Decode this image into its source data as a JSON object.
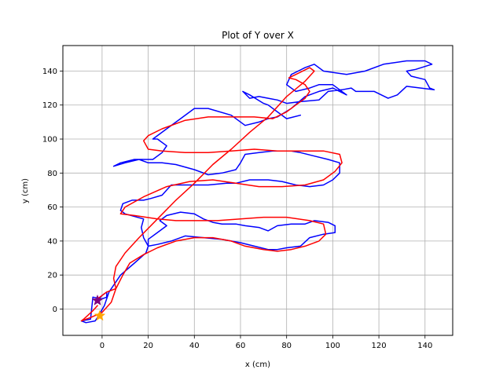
{
  "chart_data": {
    "type": "line",
    "title": "Plot of Y over X",
    "xlabel": "x (cm)",
    "ylabel": "y (cm)",
    "xlim": [
      -17,
      152
    ],
    "ylim": [
      -15.5,
      155
    ],
    "xticks": [
      0,
      20,
      40,
      60,
      80,
      100,
      120,
      140
    ],
    "yticks": [
      0,
      20,
      40,
      60,
      80,
      100,
      120,
      140
    ],
    "grid": true,
    "series": [
      {
        "color": "#0000ff",
        "points": [
          [
            -2,
            5
          ],
          [
            0,
            8
          ],
          [
            2,
            10
          ],
          [
            2,
            7
          ],
          [
            0,
            6
          ],
          [
            -4,
            7
          ],
          [
            -5,
            -6
          ],
          [
            -9,
            -7
          ],
          [
            -7,
            -8
          ],
          [
            -3,
            -7
          ],
          [
            -2,
            -5
          ],
          [
            1,
            2
          ],
          [
            3,
            10
          ],
          [
            8,
            20
          ],
          [
            14,
            27
          ],
          [
            19,
            33
          ],
          [
            20,
            37
          ],
          [
            20,
            41
          ],
          [
            24,
            45
          ],
          [
            28,
            49
          ],
          [
            25,
            52
          ],
          [
            28,
            55
          ],
          [
            34,
            57
          ],
          [
            40,
            56
          ],
          [
            44,
            53
          ],
          [
            48,
            51
          ],
          [
            52,
            50
          ],
          [
            58,
            50
          ],
          [
            62,
            49
          ],
          [
            68,
            48
          ],
          [
            72,
            46
          ],
          [
            76,
            49
          ],
          [
            82,
            50
          ],
          [
            88,
            50
          ],
          [
            92,
            52
          ],
          [
            98,
            51
          ],
          [
            101,
            49
          ],
          [
            101,
            45
          ],
          [
            96,
            44
          ],
          [
            90,
            42
          ],
          [
            86,
            37
          ],
          [
            80,
            36
          ],
          [
            76,
            35
          ],
          [
            72,
            35
          ],
          [
            66,
            37
          ],
          [
            60,
            39
          ],
          [
            52,
            41
          ],
          [
            44,
            42
          ],
          [
            36,
            43
          ],
          [
            30,
            40
          ],
          [
            24,
            38
          ],
          [
            20,
            37
          ],
          [
            18,
            42
          ],
          [
            17,
            48
          ],
          [
            18,
            53
          ],
          [
            10,
            56
          ],
          [
            8,
            58
          ],
          [
            9,
            62
          ],
          [
            13,
            64
          ],
          [
            18,
            64
          ],
          [
            21,
            65
          ],
          [
            26,
            67
          ],
          [
            30,
            73
          ],
          [
            36,
            73
          ],
          [
            42,
            73
          ],
          [
            46,
            73
          ],
          [
            54,
            74
          ],
          [
            58,
            74
          ],
          [
            64,
            76
          ],
          [
            72,
            76
          ],
          [
            78,
            75
          ],
          [
            84,
            73
          ],
          [
            90,
            72
          ],
          [
            96,
            73
          ],
          [
            100,
            76
          ],
          [
            103,
            80
          ],
          [
            103,
            86
          ],
          [
            98,
            88
          ],
          [
            92,
            90
          ],
          [
            86,
            92
          ],
          [
            82,
            93
          ],
          [
            74,
            93
          ],
          [
            68,
            92
          ],
          [
            62,
            91
          ],
          [
            60,
            86
          ],
          [
            58,
            82
          ],
          [
            52,
            80
          ],
          [
            46,
            79
          ],
          [
            40,
            82
          ],
          [
            32,
            85
          ],
          [
            26,
            86
          ],
          [
            20,
            86
          ],
          [
            16,
            88
          ],
          [
            10,
            86
          ],
          [
            5,
            84
          ],
          [
            8,
            86
          ],
          [
            14,
            88
          ],
          [
            22,
            88
          ],
          [
            26,
            92
          ],
          [
            28,
            96
          ],
          [
            24,
            100
          ],
          [
            22,
            100
          ],
          [
            28,
            106
          ],
          [
            34,
            112
          ],
          [
            40,
            118
          ],
          [
            46,
            118
          ],
          [
            56,
            114
          ],
          [
            62,
            108
          ],
          [
            68,
            110
          ],
          [
            72,
            112
          ],
          [
            76,
            113
          ],
          [
            82,
            118
          ],
          [
            88,
            125
          ],
          [
            94,
            128
          ],
          [
            100,
            130
          ],
          [
            106,
            126
          ],
          [
            100,
            132
          ],
          [
            94,
            132
          ],
          [
            90,
            130
          ],
          [
            84,
            128
          ],
          [
            80,
            132
          ],
          [
            82,
            138
          ],
          [
            88,
            142
          ],
          [
            92,
            144
          ],
          [
            96,
            140
          ],
          [
            106,
            138
          ],
          [
            114,
            140
          ],
          [
            122,
            144
          ],
          [
            132,
            146
          ],
          [
            140,
            146
          ],
          [
            143,
            144
          ],
          [
            136,
            141
          ],
          [
            132,
            140
          ],
          [
            134,
            137
          ],
          [
            140,
            135
          ],
          [
            142,
            130
          ],
          [
            144,
            129
          ],
          [
            132,
            131
          ],
          [
            128,
            126
          ],
          [
            124,
            124
          ],
          [
            118,
            128
          ],
          [
            110,
            128
          ],
          [
            108,
            130
          ],
          [
            104,
            129
          ],
          [
            98,
            128
          ],
          [
            94,
            123
          ],
          [
            86,
            122
          ],
          [
            80,
            121
          ],
          [
            76,
            123
          ],
          [
            72,
            124
          ],
          [
            68,
            125
          ],
          [
            64,
            124
          ],
          [
            61,
            128
          ],
          [
            64,
            126
          ],
          [
            70,
            121
          ],
          [
            72,
            120
          ],
          [
            76,
            116
          ],
          [
            80,
            112
          ],
          [
            86,
            114
          ]
        ]
      },
      {
        "color": "#ff0000",
        "points": [
          [
            -2,
            6
          ],
          [
            2,
            10
          ],
          [
            6,
            12
          ],
          [
            9,
            20
          ],
          [
            12,
            27
          ],
          [
            18,
            32
          ],
          [
            24,
            36
          ],
          [
            32,
            40
          ],
          [
            40,
            42
          ],
          [
            48,
            42
          ],
          [
            56,
            40
          ],
          [
            62,
            37
          ],
          [
            70,
            35
          ],
          [
            76,
            34
          ],
          [
            82,
            35
          ],
          [
            88,
            37
          ],
          [
            94,
            40
          ],
          [
            97,
            44
          ],
          [
            96,
            50
          ],
          [
            90,
            52
          ],
          [
            80,
            54
          ],
          [
            70,
            54
          ],
          [
            60,
            53
          ],
          [
            50,
            52
          ],
          [
            42,
            52
          ],
          [
            32,
            52
          ],
          [
            24,
            53
          ],
          [
            14,
            55
          ],
          [
            8,
            56
          ],
          [
            10,
            60
          ],
          [
            18,
            66
          ],
          [
            28,
            72
          ],
          [
            38,
            75
          ],
          [
            48,
            76
          ],
          [
            58,
            74
          ],
          [
            68,
            72
          ],
          [
            78,
            72
          ],
          [
            88,
            73
          ],
          [
            96,
            76
          ],
          [
            101,
            81
          ],
          [
            104,
            86
          ],
          [
            103,
            91
          ],
          [
            96,
            93
          ],
          [
            86,
            93
          ],
          [
            76,
            93
          ],
          [
            66,
            94
          ],
          [
            56,
            93
          ],
          [
            46,
            92
          ],
          [
            36,
            92
          ],
          [
            26,
            93
          ],
          [
            20,
            94
          ],
          [
            18,
            99
          ],
          [
            20,
            102
          ],
          [
            26,
            106
          ],
          [
            36,
            111
          ],
          [
            46,
            113
          ],
          [
            56,
            113
          ],
          [
            66,
            113
          ],
          [
            74,
            112
          ],
          [
            80,
            116
          ],
          [
            84,
            120
          ],
          [
            88,
            124
          ],
          [
            90,
            128
          ],
          [
            88,
            132
          ],
          [
            84,
            135
          ],
          [
            81,
            136
          ],
          [
            84,
            138
          ],
          [
            90,
            142
          ],
          [
            92,
            140
          ],
          [
            88,
            134
          ],
          [
            80,
            125
          ],
          [
            72,
            113
          ],
          [
            64,
            104
          ],
          [
            56,
            94
          ],
          [
            48,
            85
          ],
          [
            40,
            74
          ],
          [
            32,
            64
          ],
          [
            24,
            53
          ],
          [
            16,
            42
          ],
          [
            10,
            33
          ],
          [
            6,
            25
          ],
          [
            5,
            18
          ],
          [
            6,
            12
          ],
          [
            4,
            4
          ],
          [
            0,
            -2
          ],
          [
            -5,
            -5
          ],
          [
            -9,
            -7
          ],
          [
            -8,
            -6
          ],
          [
            -4,
            -1
          ],
          [
            -2,
            2
          ]
        ]
      }
    ],
    "markers": [
      {
        "shape": "star",
        "color": "#800080",
        "x": -2,
        "y": 5
      },
      {
        "shape": "star",
        "color": "#ffa500",
        "x": -1,
        "y": -4
      }
    ]
  }
}
